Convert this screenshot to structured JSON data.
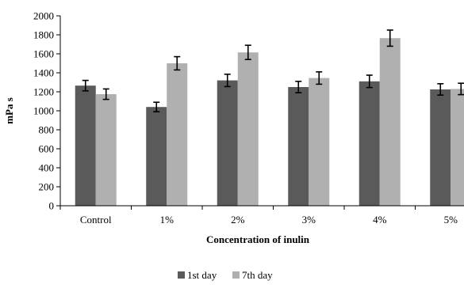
{
  "chart_data": {
    "type": "bar",
    "categories": [
      "Control",
      "1%",
      "2%",
      "3%",
      "4%",
      "5%"
    ],
    "series": [
      {
        "name": "1st day",
        "color": "#5a5a5a",
        "values": [
          1265,
          1040,
          1320,
          1250,
          1310,
          1225
        ],
        "errors": [
          55,
          50,
          65,
          60,
          65,
          60
        ]
      },
      {
        "name": "7th day",
        "color": "#b0b0b0",
        "values": [
          1175,
          1500,
          1615,
          1345,
          1765,
          1230
        ],
        "errors": [
          55,
          70,
          75,
          65,
          85,
          60
        ]
      }
    ],
    "title": "",
    "xlabel": "Concentration of inulin",
    "ylabel": "mPa s",
    "ylim": [
      0,
      2000
    ],
    "yticks": [
      0,
      200,
      400,
      600,
      800,
      1000,
      1200,
      1400,
      1600,
      1800,
      2000
    ],
    "grid": false,
    "legend_position": "bottom-center",
    "error_bars": true
  }
}
